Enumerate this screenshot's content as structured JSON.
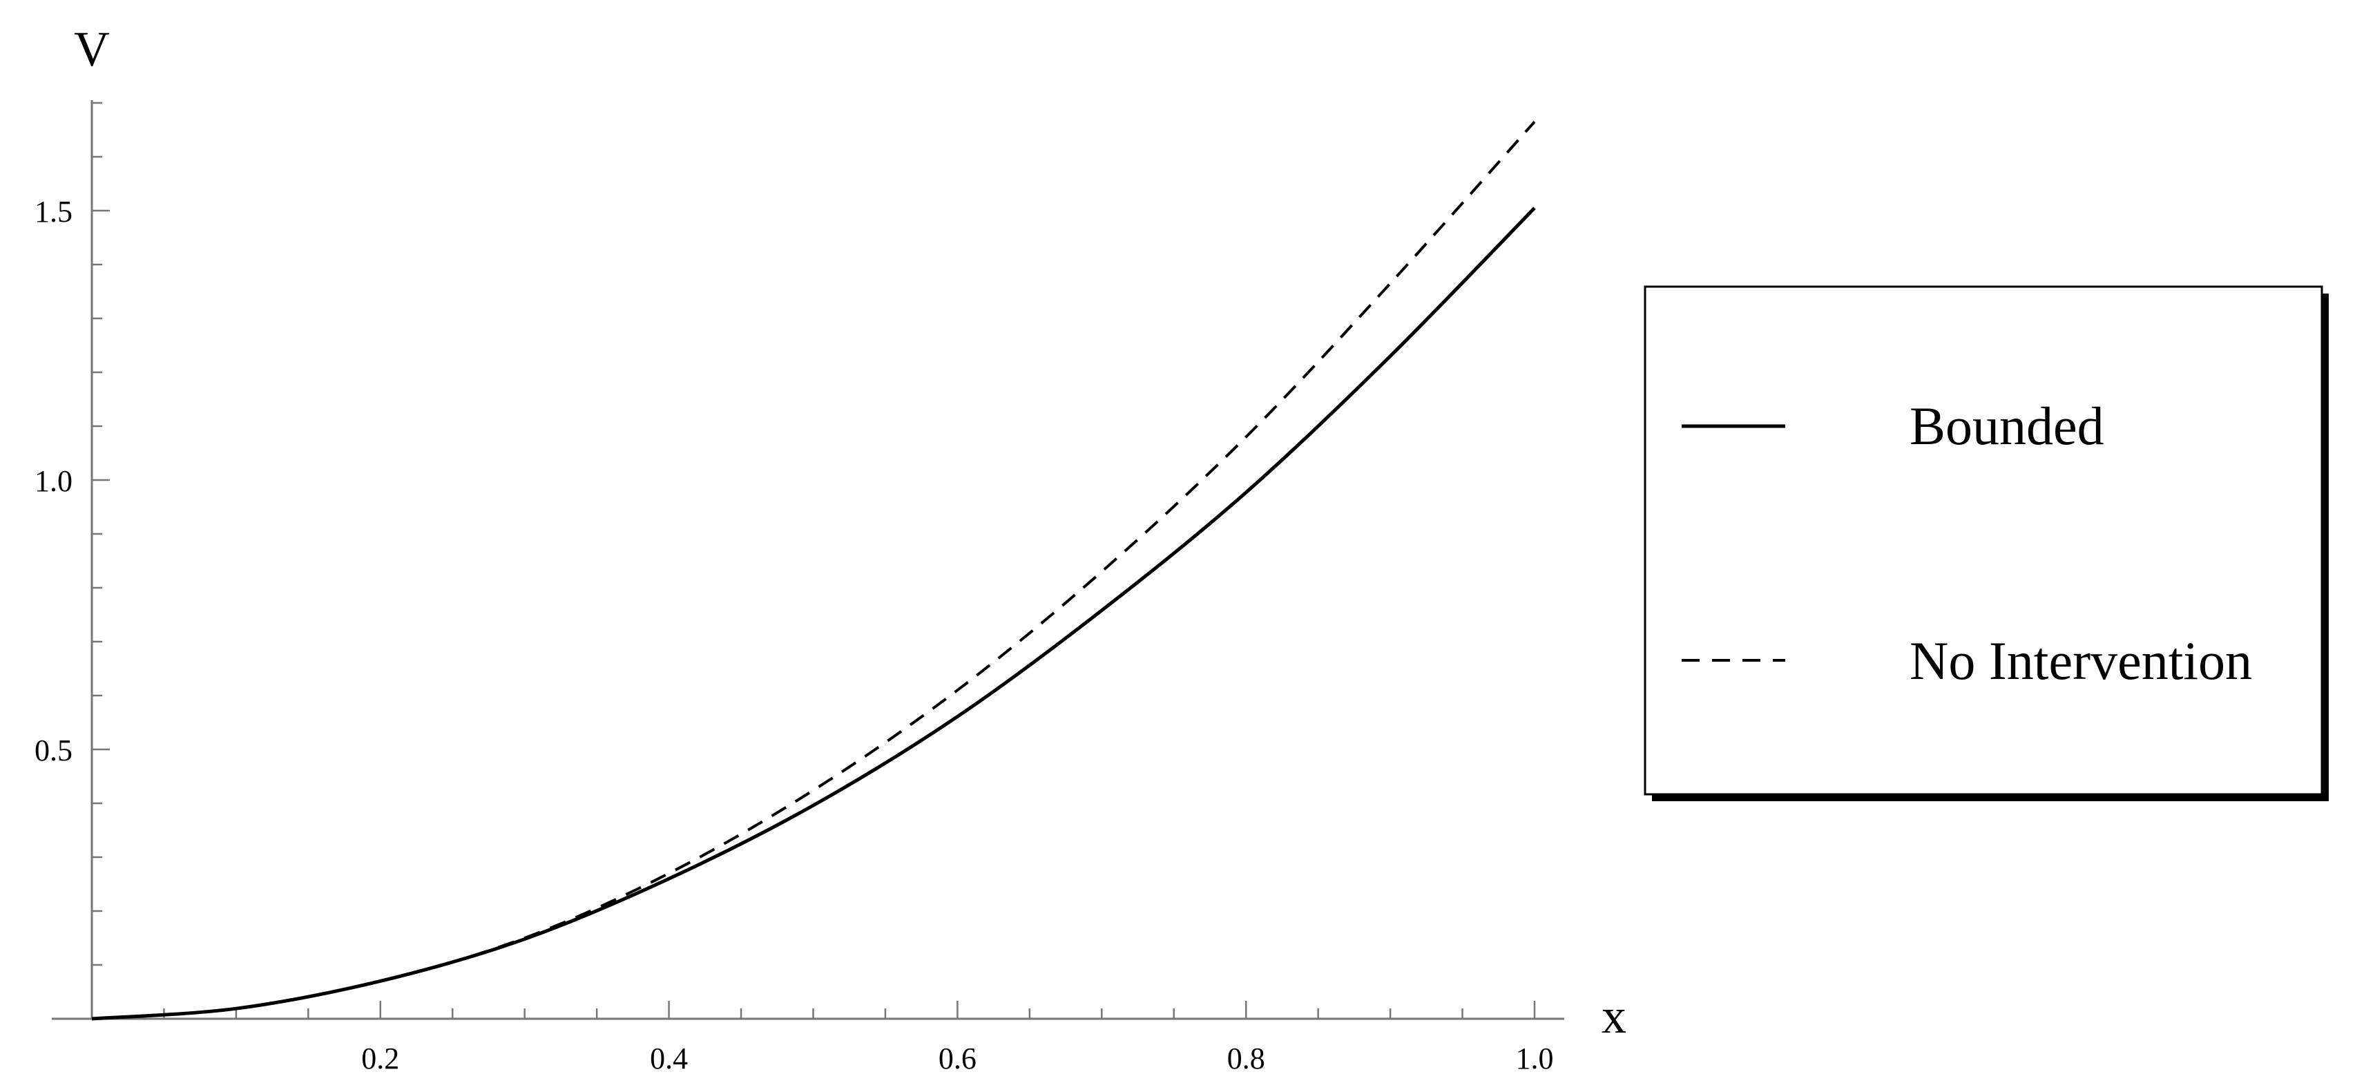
{
  "chart_data": {
    "type": "line",
    "title": "",
    "xlabel": "x",
    "ylabel": "V",
    "xlim": [
      0,
      1.0
    ],
    "ylim": [
      0,
      1.7
    ],
    "x_ticks": [
      {
        "value": 0.2,
        "label": "0.2"
      },
      {
        "value": 0.4,
        "label": "0.4"
      },
      {
        "value": 0.6,
        "label": "0.6"
      },
      {
        "value": 0.8,
        "label": "0.8"
      },
      {
        "value": 1.0,
        "label": "1.0"
      }
    ],
    "y_ticks": [
      {
        "value": 0.5,
        "label": "0.5"
      },
      {
        "value": 1.0,
        "label": "1.0"
      },
      {
        "value": 1.5,
        "label": "1.5"
      }
    ],
    "grid": false,
    "legend_position": "right",
    "x": [
      0.0,
      0.1,
      0.2,
      0.3,
      0.4,
      0.5,
      0.6,
      0.7,
      0.8,
      0.9,
      1.0
    ],
    "series": [
      {
        "name": "Bounded",
        "style": "solid",
        "color": "#000000",
        "values": [
          0.0,
          0.019,
          0.07,
          0.148,
          0.26,
          0.396,
          0.561,
          0.758,
          0.977,
          1.23,
          1.505
        ]
      },
      {
        "name": "No Intervention",
        "style": "dashed",
        "color": "#000000",
        "values": [
          0.0,
          0.019,
          0.07,
          0.15,
          0.27,
          0.424,
          0.61,
          0.83,
          1.08,
          1.365,
          1.665
        ]
      }
    ]
  }
}
